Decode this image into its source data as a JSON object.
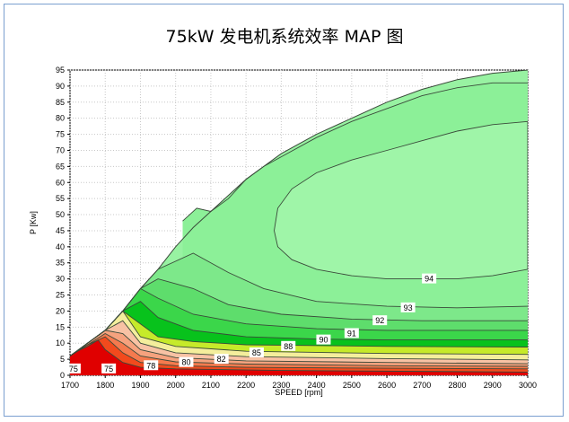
{
  "title": "75kW 发电机系统效率 MAP 图",
  "chart_data": {
    "type": "contour",
    "title": "75kW 发电机系统效率 MAP 图",
    "xlabel": "SPEED [rpm]",
    "ylabel": "P [Kw]",
    "xlim": [
      1700,
      3000
    ],
    "ylim": [
      0,
      95
    ],
    "xticks": [
      1700,
      1800,
      1900,
      2000,
      2100,
      2200,
      2300,
      2400,
      2500,
      2600,
      2700,
      2800,
      2900,
      3000
    ],
    "yticks": [
      0,
      5,
      10,
      15,
      20,
      25,
      30,
      35,
      40,
      45,
      50,
      55,
      60,
      65,
      70,
      75,
      80,
      85,
      90,
      95
    ],
    "grid": true,
    "contour_levels": [
      75,
      78,
      80,
      82,
      85,
      88,
      90,
      91,
      92,
      93,
      94
    ],
    "level_labels": [
      {
        "text": "75",
        "x": 1710,
        "y": 2
      },
      {
        "text": "75",
        "x": 1810,
        "y": 2
      },
      {
        "text": "78",
        "x": 1930,
        "y": 3
      },
      {
        "text": "80",
        "x": 2030,
        "y": 4
      },
      {
        "text": "82",
        "x": 2130,
        "y": 5
      },
      {
        "text": "85",
        "x": 2230,
        "y": 7
      },
      {
        "text": "88",
        "x": 2320,
        "y": 9
      },
      {
        "text": "90",
        "x": 2420,
        "y": 11
      },
      {
        "text": "91",
        "x": 2500,
        "y": 13
      },
      {
        "text": "92",
        "x": 2580,
        "y": 17
      },
      {
        "text": "93",
        "x": 2660,
        "y": 21
      },
      {
        "text": "94",
        "x": 2720,
        "y": 30
      }
    ],
    "boundary": [
      [
        1700,
        6
      ],
      [
        1750,
        10
      ],
      [
        1800,
        14
      ],
      [
        1850,
        20
      ],
      [
        1900,
        27
      ],
      [
        1950,
        33
      ],
      [
        2000,
        40
      ],
      [
        2050,
        46
      ],
      [
        2100,
        51
      ],
      [
        2150,
        56
      ],
      [
        2200,
        61
      ],
      [
        2250,
        65
      ],
      [
        2300,
        69
      ],
      [
        2400,
        75
      ],
      [
        2500,
        80
      ],
      [
        2600,
        85
      ],
      [
        2700,
        89
      ],
      [
        2800,
        92
      ],
      [
        2900,
        94
      ],
      [
        3000,
        95
      ]
    ],
    "regions": [
      {
        "level": "<75",
        "color": "#e00000",
        "upper": [
          [
            1700,
            6
          ],
          [
            1720,
            7.5
          ],
          [
            1750,
            9
          ],
          [
            1780,
            11
          ],
          [
            1800,
            8
          ],
          [
            1850,
            4
          ],
          [
            1900,
            2.5
          ],
          [
            2000,
            2
          ],
          [
            2300,
            1.5
          ],
          [
            3000,
            1
          ]
        ]
      },
      {
        "level": "75-78",
        "color": "#f24a1d",
        "upper": [
          [
            1700,
            6
          ],
          [
            1750,
            9.5
          ],
          [
            1800,
            12
          ],
          [
            1850,
            7
          ],
          [
            1900,
            4
          ],
          [
            2000,
            3
          ],
          [
            2200,
            2.5
          ],
          [
            2600,
            2.2
          ],
          [
            3000,
            2
          ]
        ]
      },
      {
        "level": "78-80",
        "color": "#f57a4e",
        "upper": [
          [
            1700,
            6
          ],
          [
            1800,
            13
          ],
          [
            1850,
            10
          ],
          [
            1900,
            6
          ],
          [
            2000,
            4.2
          ],
          [
            2200,
            3.5
          ],
          [
            2600,
            3
          ],
          [
            3000,
            2.8
          ]
        ]
      },
      {
        "level": "80-82",
        "color": "#f6a27e",
        "upper": [
          [
            1700,
            6
          ],
          [
            1800,
            14
          ],
          [
            1850,
            13
          ],
          [
            1900,
            8
          ],
          [
            2000,
            5.5
          ],
          [
            2200,
            4.5
          ],
          [
            2600,
            4
          ],
          [
            3000,
            3.6
          ]
        ]
      },
      {
        "level": "82-85",
        "color": "#f8c2a4",
        "upper": [
          [
            1700,
            6
          ],
          [
            1800,
            14
          ],
          [
            1850,
            17
          ],
          [
            1900,
            10
          ],
          [
            2000,
            7
          ],
          [
            2200,
            5.8
          ],
          [
            2600,
            5.2
          ],
          [
            3000,
            4.8
          ]
        ]
      },
      {
        "level": "85-88",
        "color": "#f4ee9c",
        "upper": [
          [
            1700,
            6
          ],
          [
            1800,
            14
          ],
          [
            1850,
            20
          ],
          [
            1900,
            12
          ],
          [
            2000,
            9
          ],
          [
            2200,
            7.5
          ],
          [
            2600,
            6.8
          ],
          [
            3000,
            6.5
          ]
        ]
      },
      {
        "level": "88-90",
        "color": "#c6ea2a",
        "upper": [
          [
            1700,
            6
          ],
          [
            1800,
            14
          ],
          [
            1850,
            20
          ],
          [
            1900,
            16
          ],
          [
            1950,
            12
          ],
          [
            2050,
            10.5
          ],
          [
            2200,
            9.5
          ],
          [
            2600,
            9
          ],
          [
            3000,
            8.8
          ]
        ]
      },
      {
        "level": "90-91",
        "color": "#08c21c",
        "upper": [
          [
            1700,
            6
          ],
          [
            1800,
            14
          ],
          [
            1850,
            20
          ],
          [
            1900,
            23
          ],
          [
            1950,
            18
          ],
          [
            2050,
            14
          ],
          [
            2200,
            12
          ],
          [
            2400,
            11.3
          ],
          [
            2600,
            11
          ],
          [
            3000,
            11
          ]
        ]
      },
      {
        "level": "91-92",
        "color": "#3bd64a",
        "upper": [
          [
            1700,
            6
          ],
          [
            1800,
            14
          ],
          [
            1850,
            20
          ],
          [
            1900,
            27
          ],
          [
            1950,
            24
          ],
          [
            2050,
            19
          ],
          [
            2200,
            16
          ],
          [
            2400,
            14.5
          ],
          [
            2600,
            14
          ],
          [
            3000,
            14
          ]
        ]
      },
      {
        "level": "92-93",
        "color": "#5edd6c",
        "upper": [
          [
            1700,
            6
          ],
          [
            1800,
            14
          ],
          [
            1850,
            20
          ],
          [
            1900,
            27
          ],
          [
            1950,
            30
          ],
          [
            2050,
            27
          ],
          [
            2150,
            22
          ],
          [
            2300,
            19
          ],
          [
            2500,
            17.5
          ],
          [
            2700,
            17
          ],
          [
            3000,
            17
          ]
        ]
      },
      {
        "level": "93-94",
        "color": "#7de88a",
        "upper": [
          [
            1700,
            6
          ],
          [
            1800,
            14
          ],
          [
            1850,
            20
          ],
          [
            1900,
            27
          ],
          [
            1950,
            33
          ],
          [
            2050,
            38
          ],
          [
            2150,
            32
          ],
          [
            2250,
            27
          ],
          [
            2400,
            23
          ],
          [
            2600,
            21.5
          ],
          [
            2800,
            21
          ],
          [
            3000,
            21.5
          ]
        ]
      }
    ],
    "inner_94": [
      [
        2280,
        45
      ],
      [
        2290,
        52
      ],
      [
        2330,
        58
      ],
      [
        2400,
        63
      ],
      [
        2500,
        67
      ],
      [
        2600,
        70
      ],
      [
        2700,
        73
      ],
      [
        2800,
        76
      ],
      [
        2900,
        78
      ],
      [
        3000,
        79
      ],
      [
        3000,
        33
      ],
      [
        2900,
        31
      ],
      [
        2800,
        30
      ],
      [
        2700,
        30
      ],
      [
        2600,
        30
      ],
      [
        2500,
        31
      ],
      [
        2400,
        33
      ],
      [
        2330,
        36
      ],
      [
        2290,
        40
      ]
    ],
    "outer_94": [
      [
        2020,
        48
      ],
      [
        2060,
        52
      ],
      [
        2100,
        51
      ],
      [
        2150,
        55
      ],
      [
        2200,
        61
      ],
      [
        2250,
        65
      ],
      [
        2300,
        68
      ],
      [
        2400,
        74
      ],
      [
        2500,
        79
      ],
      [
        2600,
        83
      ],
      [
        2700,
        87
      ],
      [
        2800,
        89.5
      ],
      [
        2900,
        91
      ],
      [
        3000,
        91
      ]
    ]
  }
}
